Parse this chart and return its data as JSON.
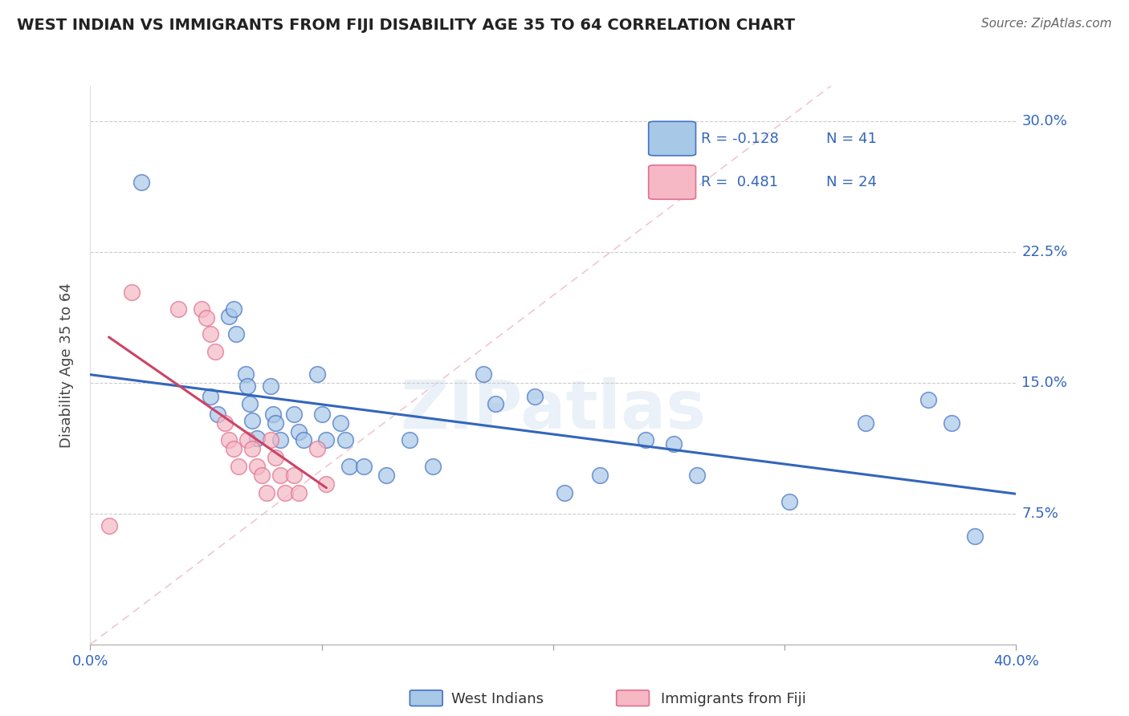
{
  "title": "WEST INDIAN VS IMMIGRANTS FROM FIJI DISABILITY AGE 35 TO 64 CORRELATION CHART",
  "source": "Source: ZipAtlas.com",
  "ylabel": "Disability Age 35 to 64",
  "legend_label_1": "West Indians",
  "legend_label_2": "Immigrants from Fiji",
  "R1": -0.128,
  "N1": 41,
  "R2": 0.481,
  "N2": 24,
  "xlim": [
    0.0,
    0.4
  ],
  "ylim": [
    0.0,
    0.32
  ],
  "xticks": [
    0.0,
    0.1,
    0.2,
    0.3,
    0.4
  ],
  "xtick_labels": [
    "0.0%",
    "",
    "",
    "",
    "40.0%"
  ],
  "yticks_right": [
    0.075,
    0.15,
    0.225,
    0.3
  ],
  "ytick_labels_right": [
    "7.5%",
    "15.0%",
    "22.5%",
    "30.0%"
  ],
  "color_blue": "#a8c8e8",
  "color_blue_dark": "#4472c4",
  "color_blue_line": "#3366bb",
  "color_pink": "#f5b8c4",
  "color_pink_dark": "#e07090",
  "color_pink_line": "#cc4466",
  "color_diag": "#e8b0c0",
  "background": "#ffffff",
  "blue_x": [
    0.022,
    0.052,
    0.055,
    0.06,
    0.062,
    0.063,
    0.067,
    0.068,
    0.069,
    0.07,
    0.072,
    0.078,
    0.079,
    0.08,
    0.082,
    0.088,
    0.09,
    0.092,
    0.098,
    0.1,
    0.102,
    0.108,
    0.11,
    0.112,
    0.118,
    0.128,
    0.138,
    0.148,
    0.17,
    0.175,
    0.192,
    0.205,
    0.22,
    0.24,
    0.252,
    0.262,
    0.302,
    0.335,
    0.362,
    0.372,
    0.382
  ],
  "blue_y": [
    0.265,
    0.142,
    0.132,
    0.188,
    0.192,
    0.178,
    0.155,
    0.148,
    0.138,
    0.128,
    0.118,
    0.148,
    0.132,
    0.127,
    0.117,
    0.132,
    0.122,
    0.117,
    0.155,
    0.132,
    0.117,
    0.127,
    0.117,
    0.102,
    0.102,
    0.097,
    0.117,
    0.102,
    0.155,
    0.138,
    0.142,
    0.087,
    0.097,
    0.117,
    0.115,
    0.097,
    0.082,
    0.127,
    0.14,
    0.127,
    0.062
  ],
  "pink_x": [
    0.008,
    0.018,
    0.038,
    0.048,
    0.05,
    0.052,
    0.054,
    0.058,
    0.06,
    0.062,
    0.064,
    0.068,
    0.07,
    0.072,
    0.074,
    0.076,
    0.078,
    0.08,
    0.082,
    0.084,
    0.088,
    0.09,
    0.098,
    0.102
  ],
  "pink_y": [
    0.068,
    0.202,
    0.192,
    0.192,
    0.187,
    0.178,
    0.168,
    0.127,
    0.117,
    0.112,
    0.102,
    0.117,
    0.112,
    0.102,
    0.097,
    0.087,
    0.117,
    0.107,
    0.097,
    0.087,
    0.097,
    0.087,
    0.112,
    0.092
  ]
}
